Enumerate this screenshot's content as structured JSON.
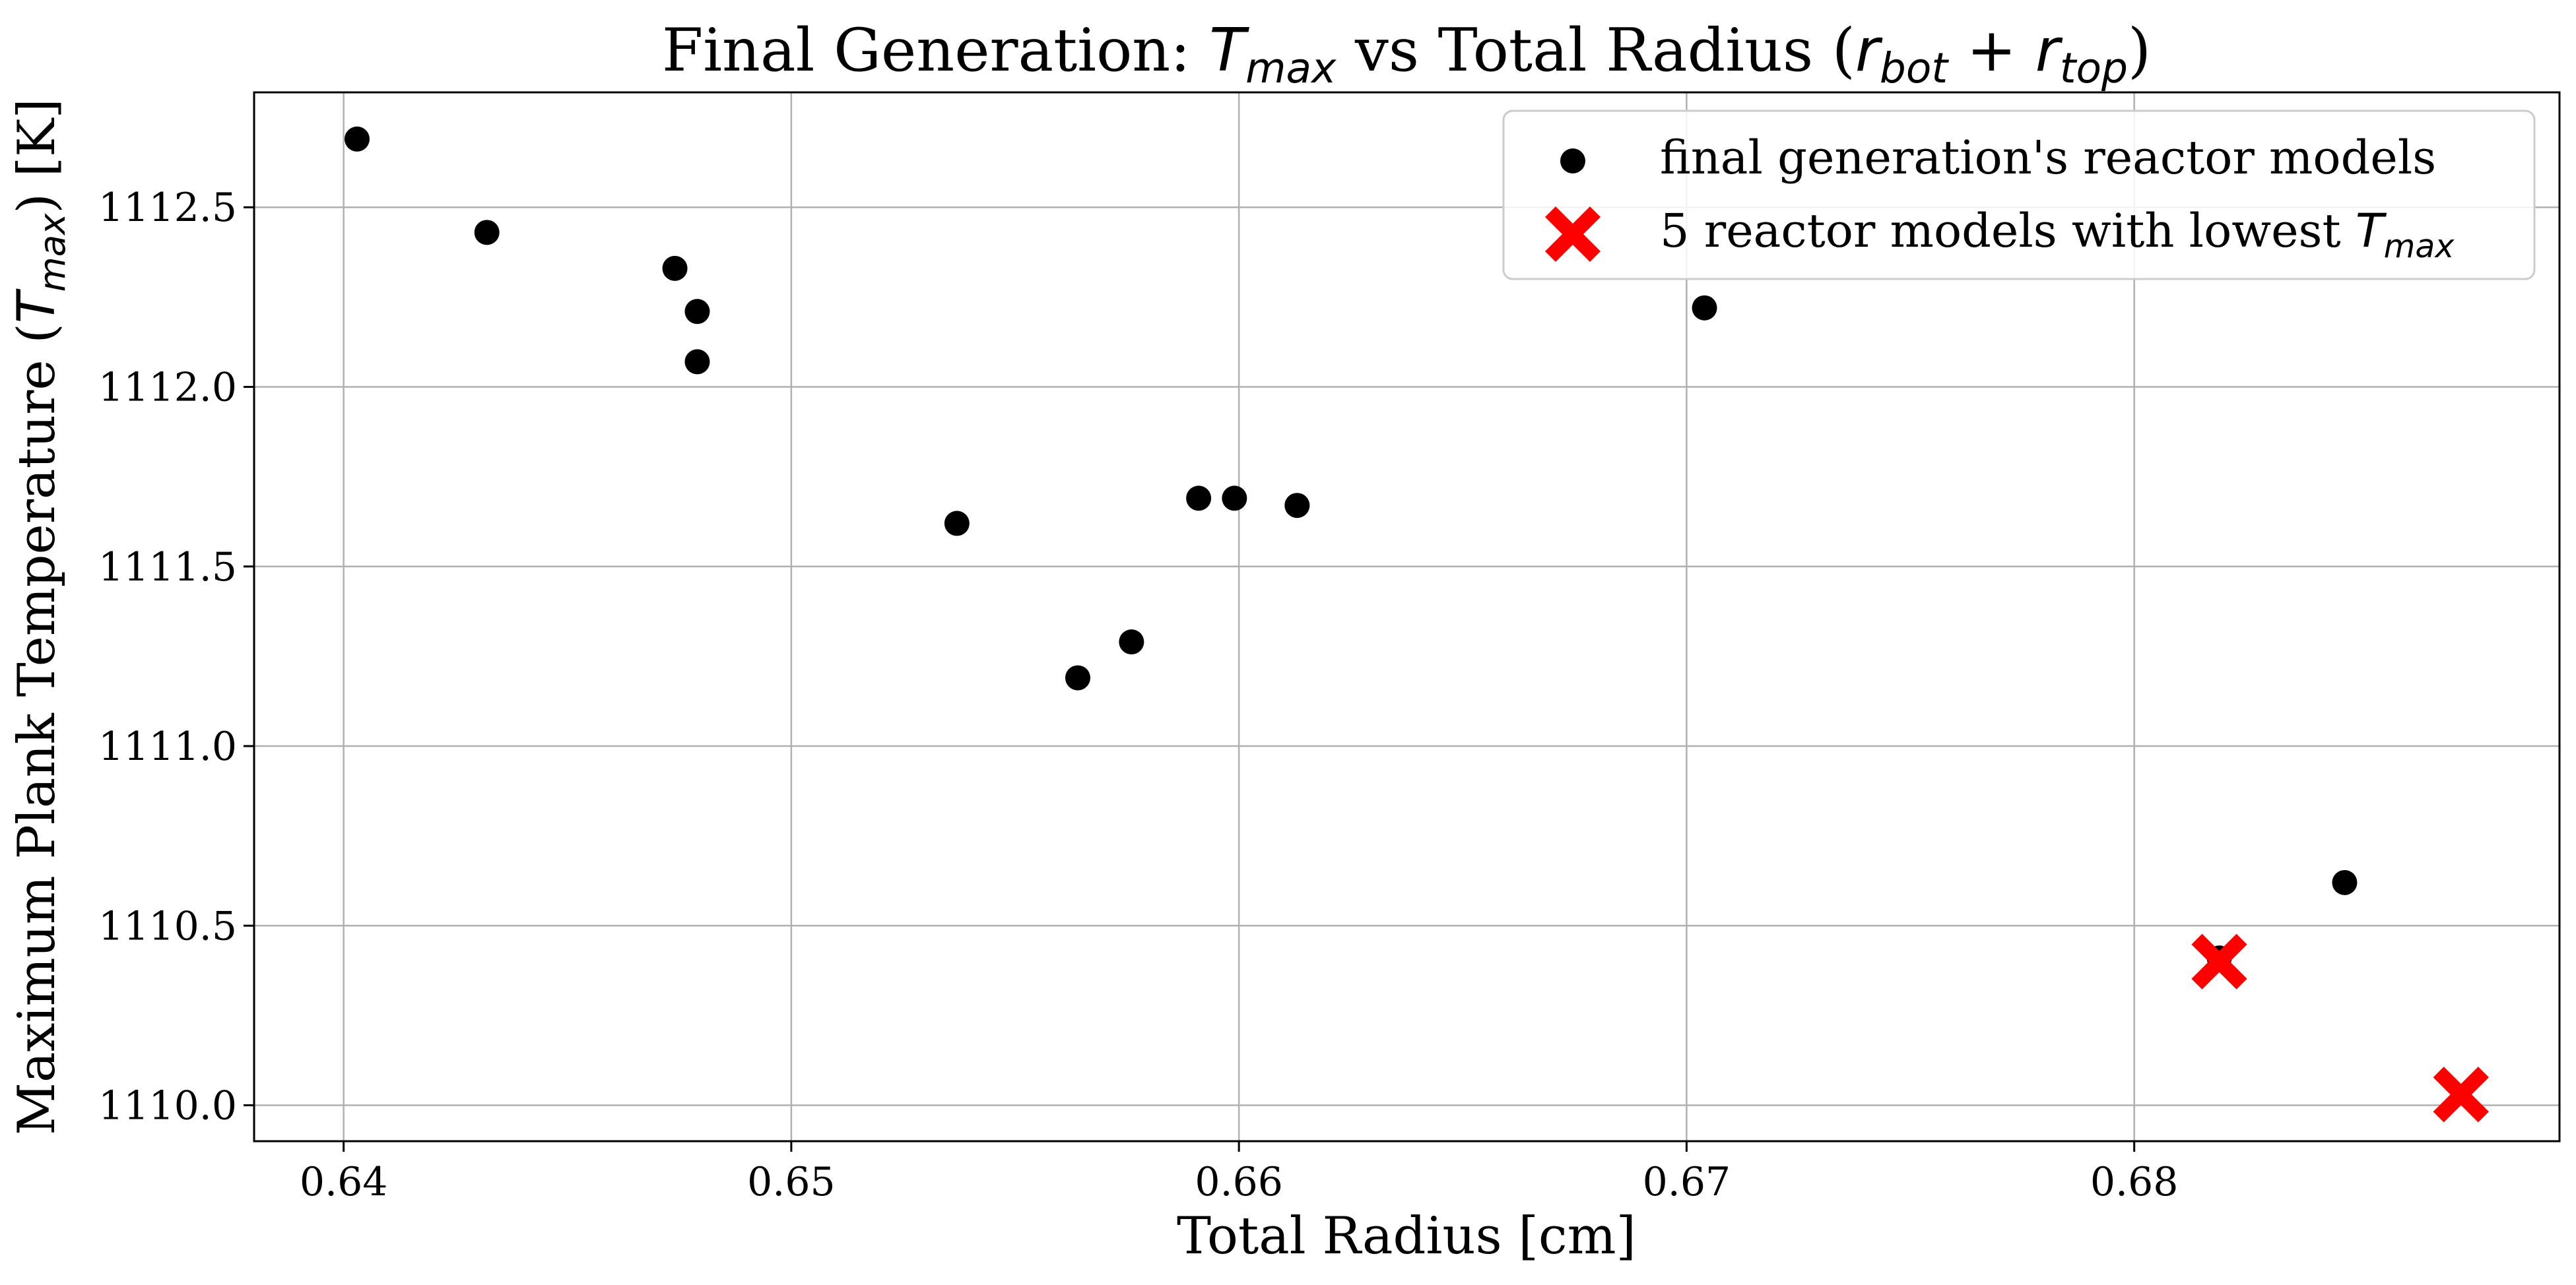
{
  "chart_data": {
    "type": "scatter",
    "title": "Final Generation: T_max vs Total Radius (r_bot + r_top)",
    "xlabel": "Total Radius [cm]",
    "ylabel": "Maximum Plank Temperature (T_max) [K]",
    "xlim": [
      0.638,
      0.6895
    ],
    "ylim": [
      1109.9,
      1112.82
    ],
    "xticks": [
      "0.64",
      "0.65",
      "0.66",
      "0.67",
      "0.68"
    ],
    "yticks": [
      "1110.0",
      "1110.5",
      "1111.0",
      "1111.5",
      "1112.0",
      "1112.5"
    ],
    "grid": true,
    "legend_position": "top-right",
    "series": [
      {
        "name": "final generation's reactor models",
        "marker": "circle",
        "color": "#000000",
        "points": [
          {
            "x": 0.6403,
            "y": 1112.69
          },
          {
            "x": 0.6432,
            "y": 1112.43
          },
          {
            "x": 0.6474,
            "y": 1112.33
          },
          {
            "x": 0.6479,
            "y": 1112.21
          },
          {
            "x": 0.6479,
            "y": 1112.07
          },
          {
            "x": 0.6537,
            "y": 1111.62
          },
          {
            "x": 0.6564,
            "y": 1111.19
          },
          {
            "x": 0.6576,
            "y": 1111.29
          },
          {
            "x": 0.6591,
            "y": 1111.69
          },
          {
            "x": 0.6599,
            "y": 1111.69
          },
          {
            "x": 0.6613,
            "y": 1111.67
          },
          {
            "x": 0.6704,
            "y": 1112.22
          },
          {
            "x": 0.6819,
            "y": 1110.41
          },
          {
            "x": 0.6847,
            "y": 1110.62
          }
        ]
      },
      {
        "name": "5 reactor models with lowest T_max",
        "marker": "x-filled",
        "color": "#ff0000",
        "points": [
          {
            "x": 0.6819,
            "y": 1110.4
          },
          {
            "x": 0.6819,
            "y": 1110.4
          },
          {
            "x": 0.6873,
            "y": 1110.03
          },
          {
            "x": 0.6873,
            "y": 1110.03
          },
          {
            "x": 0.6873,
            "y": 1110.03
          }
        ]
      }
    ]
  }
}
